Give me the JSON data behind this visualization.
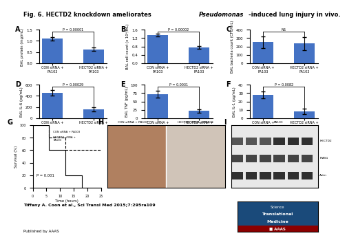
{
  "title": "Fig. 6. HECTD2 knockdown ameliorates Pseudomonas-induced lung injury in vivo.",
  "background_color": "#ffffff",
  "bar_color": "#4472c4",
  "panels": {
    "A": {
      "label": "A",
      "ylabel": "BAL protein (mg/mL)",
      "ylim": [
        0,
        1.5
      ],
      "yticks": [
        0,
        0.5,
        1.0,
        1.5
      ],
      "values": [
        1.1,
        0.62
      ],
      "errors": [
        0.08,
        0.07
      ],
      "pval": "P = 0.00001",
      "categories": [
        "CON siRNA +\nPA103",
        "HECTD2 siRNA +\nPA103"
      ]
    },
    "B": {
      "label": "B",
      "ylabel": "BAL cell count (x 10⁶/mL)",
      "ylim": [
        0,
        1.6
      ],
      "yticks": [
        0,
        0.4,
        0.8,
        1.2,
        1.6
      ],
      "values": [
        1.35,
        0.75
      ],
      "errors": [
        0.07,
        0.08
      ],
      "pval": "P = 0.00002",
      "categories": [
        "CON siRNA +\nPA103",
        "HECTD2 siRNA +\nPA103"
      ]
    },
    "C": {
      "label": "C",
      "ylabel": "BAL bacteria count (CFU/mL)",
      "ylim": [
        0,
        400
      ],
      "yticks": [
        0,
        100,
        200,
        300,
        400
      ],
      "values": [
        250,
        235
      ],
      "errors": [
        70,
        80
      ],
      "pval": "NS",
      "categories": [
        "CON siRNA +\nPA103",
        "HECTD2 siRNA +\nPA103"
      ]
    },
    "D": {
      "label": "D",
      "ylabel": "BAL IL-6 (pg/mL)",
      "ylim": [
        0,
        600
      ],
      "yticks": [
        0,
        200,
        400,
        600
      ],
      "values": [
        450,
        155
      ],
      "errors": [
        50,
        40
      ],
      "pval": "P = 0.00029",
      "categories": [
        "CON siRNA +\nPA103",
        "HECTD2 siRNA +\nPA103"
      ]
    },
    "E": {
      "label": "E",
      "ylabel": "BAL TNF (pg/mL)",
      "ylim": [
        0,
        100
      ],
      "yticks": [
        0,
        25,
        50,
        75,
        100
      ],
      "values": [
        72,
        22
      ],
      "errors": [
        10,
        5
      ],
      "pval": "P = 0.0031",
      "categories": [
        "CON siRNA +\nPA103",
        "HECTD2 siRNA +\nPA103"
      ]
    },
    "F": {
      "label": "F",
      "ylabel": "BAL IL-1 (pg/mL)",
      "ylim": [
        0,
        40
      ],
      "yticks": [
        0,
        10,
        20,
        30,
        40
      ],
      "values": [
        28,
        8
      ],
      "errors": [
        4,
        3
      ],
      "pval": "P = 0.0082",
      "categories": [
        "CON siRNA +\nPA103",
        "HECTD2 siRNA +\nPA103"
      ]
    },
    "G": {
      "label": "G",
      "ylabel": "Survival (%)",
      "xlabel": "Time (hours)",
      "xlim": [
        0,
        25
      ],
      "ylim": [
        0,
        100
      ],
      "xticks": [
        0,
        5,
        10,
        15,
        20,
        25
      ],
      "yticks": [
        0,
        20,
        40,
        60,
        80,
        100
      ],
      "pval": "P = 0.001",
      "line1_label": "CON siRNA + PA103",
      "line2_label": "HECTD2 siRNA +\nPA103",
      "line1_x": [
        0,
        6,
        6,
        12,
        12,
        18,
        18,
        25
      ],
      "line1_y": [
        100,
        100,
        60,
        60,
        20,
        20,
        0,
        0
      ],
      "line2_x": [
        0,
        6,
        6,
        12,
        12,
        25
      ],
      "line2_y": [
        100,
        100,
        80,
        80,
        60,
        60
      ]
    }
  },
  "footer_text": "Tiffany A. Coon et al., Sci Transl Med 2015;7:295ra109",
  "published_text": "Published by AAAS",
  "wb_labels": [
    "HECTD2",
    "PIAS1",
    "Actin"
  ]
}
